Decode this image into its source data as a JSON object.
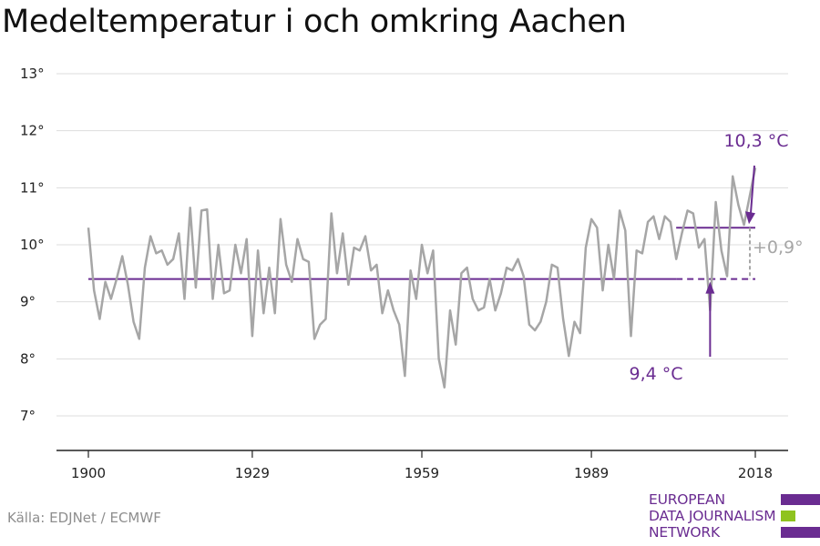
{
  "title": "Medeltemperatur i och omkring Aachen",
  "source": "Källa: EDJNet / ECMWF",
  "logo": {
    "line1": "EUROPEAN",
    "line2": "DATA JOURNALISM",
    "line3": "NETWORK"
  },
  "colors": {
    "series": "#a6a6a6",
    "accent": "#6a2c91",
    "logo_green": "#8fc31f",
    "grid": "#dddddd",
    "axis": "#222222"
  },
  "chart_data": {
    "type": "line",
    "title": "Medeltemperatur i och omkring Aachen",
    "xlabel": "",
    "ylabel": "",
    "ylim": [
      7,
      13
    ],
    "xlim": [
      1900,
      2018
    ],
    "grid": true,
    "yticks": [
      "7°",
      "8°",
      "9°",
      "10°",
      "11°",
      "12°",
      "13°"
    ],
    "xticks": [
      "1900",
      "1929",
      "1959",
      "1989",
      "2018"
    ],
    "series": [
      {
        "x": [
          1900,
          1901,
          1902,
          1903,
          1904,
          1905,
          1906,
          1907,
          1908,
          1909,
          1910,
          1911,
          1912,
          1913,
          1914,
          1915,
          1916,
          1917,
          1918,
          1919,
          1920,
          1921,
          1922,
          1923,
          1924,
          1925,
          1926,
          1927,
          1928,
          1929,
          1930,
          1931,
          1932,
          1933,
          1934,
          1935,
          1936,
          1937,
          1938,
          1939,
          1940,
          1941,
          1942,
          1943,
          1944,
          1945,
          1946,
          1947,
          1948,
          1949,
          1950,
          1951,
          1952,
          1953,
          1954,
          1955,
          1956,
          1957,
          1958,
          1959,
          1960,
          1961,
          1962,
          1963,
          1964,
          1965,
          1966,
          1967,
          1968,
          1969,
          1970,
          1971,
          1972,
          1973,
          1974,
          1975,
          1976,
          1977,
          1978,
          1979,
          1980,
          1981,
          1982,
          1983,
          1984,
          1985,
          1986,
          1987,
          1988,
          1989,
          1990,
          1991,
          1992,
          1993,
          1994,
          1995,
          1996,
          1997,
          1998,
          1999,
          2000,
          2001,
          2002,
          2003,
          2004,
          2005,
          2006,
          2007,
          2008,
          2009,
          2010,
          2011,
          2012,
          2013,
          2014,
          2015,
          2016,
          2017,
          2018
        ],
        "values": [
          10.3,
          9.2,
          8.7,
          9.35,
          9.05,
          9.4,
          9.8,
          9.3,
          8.65,
          8.35,
          9.6,
          10.15,
          9.85,
          9.9,
          9.65,
          9.75,
          10.2,
          9.05,
          10.65,
          9.25,
          10.6,
          10.62,
          9.05,
          10.0,
          9.15,
          9.2,
          10.0,
          9.5,
          10.1,
          8.4,
          9.9,
          8.8,
          9.6,
          8.8,
          10.45,
          9.65,
          9.35,
          10.1,
          9.75,
          9.7,
          8.35,
          8.6,
          8.7,
          10.55,
          9.5,
          10.2,
          9.3,
          9.95,
          9.9,
          10.15,
          9.55,
          9.65,
          8.8,
          9.2,
          8.85,
          8.6,
          7.7,
          9.55,
          9.05,
          10.0,
          9.5,
          9.9,
          8.0,
          7.5,
          8.85,
          8.25,
          9.5,
          9.6,
          9.05,
          8.85,
          8.9,
          9.4,
          8.85,
          9.15,
          9.6,
          9.55,
          9.75,
          9.45,
          8.6,
          8.5,
          8.65,
          9.0,
          9.65,
          9.6,
          8.7,
          8.05,
          8.65,
          8.45,
          9.95,
          10.45,
          10.3,
          9.2,
          10.0,
          9.4,
          10.6,
          10.25,
          8.4,
          9.9,
          9.85,
          10.4,
          10.5,
          10.1,
          10.5,
          10.4,
          9.75,
          10.2,
          10.6,
          10.55,
          9.95,
          10.1,
          8.85,
          10.75,
          9.9,
          9.45,
          11.2,
          10.7,
          10.35,
          10.85,
          11.35
        ]
      }
    ],
    "reference_lines": [
      {
        "name": "baseline",
        "value": 9.4,
        "label": "9,4 °C"
      },
      {
        "name": "recent",
        "value": 10.3,
        "label": "10,3 °C"
      }
    ],
    "annotations": {
      "difference": "+0,9°"
    }
  }
}
